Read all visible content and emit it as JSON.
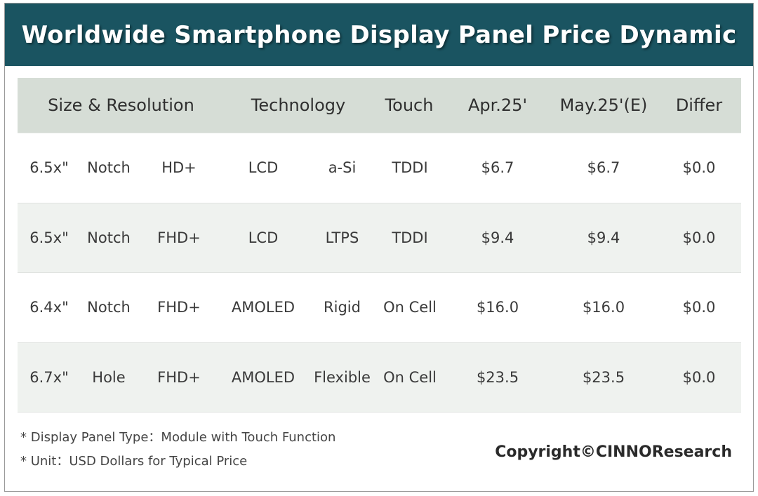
{
  "title": "Worldwide Smartphone Display Panel Price Dynamic",
  "colors": {
    "title_bar": "#1a5461",
    "header_row": "#d6ddd6",
    "shaded_row": "#eff2ef"
  },
  "table": {
    "headers": {
      "size_resolution": "Size & Resolution",
      "technology": "Technology",
      "touch": "Touch",
      "apr": "Apr.25'",
      "may": "May.25'(E)",
      "differ": "Differ"
    },
    "rows": [
      {
        "size": "6.5x\"",
        "shape": "Notch",
        "res": "HD+",
        "tech": "LCD",
        "sub": "a-Si",
        "touch": "TDDI",
        "apr": "$6.7",
        "may": "$6.7",
        "differ": "$0.0"
      },
      {
        "size": "6.5x\"",
        "shape": "Notch",
        "res": "FHD+",
        "tech": "LCD",
        "sub": "LTPS",
        "touch": "TDDI",
        "apr": "$9.4",
        "may": "$9.4",
        "differ": "$0.0"
      },
      {
        "size": "6.4x\"",
        "shape": "Notch",
        "res": "FHD+",
        "tech": "AMOLED",
        "sub": "Rigid",
        "touch": "On Cell",
        "apr": "$16.0",
        "may": "$16.0",
        "differ": "$0.0"
      },
      {
        "size": "6.7x\"",
        "shape": "Hole",
        "res": "FHD+",
        "tech": "AMOLED",
        "sub": "Flexible",
        "touch": "On Cell",
        "apr": "$23.5",
        "may": "$23.5",
        "differ": "$0.0"
      }
    ]
  },
  "footnotes": [
    "* Display Panel Type：Module with Touch Function",
    "* Unit：USD Dollars for Typical Price"
  ],
  "copyright": "Copyright©CINNOResearch"
}
